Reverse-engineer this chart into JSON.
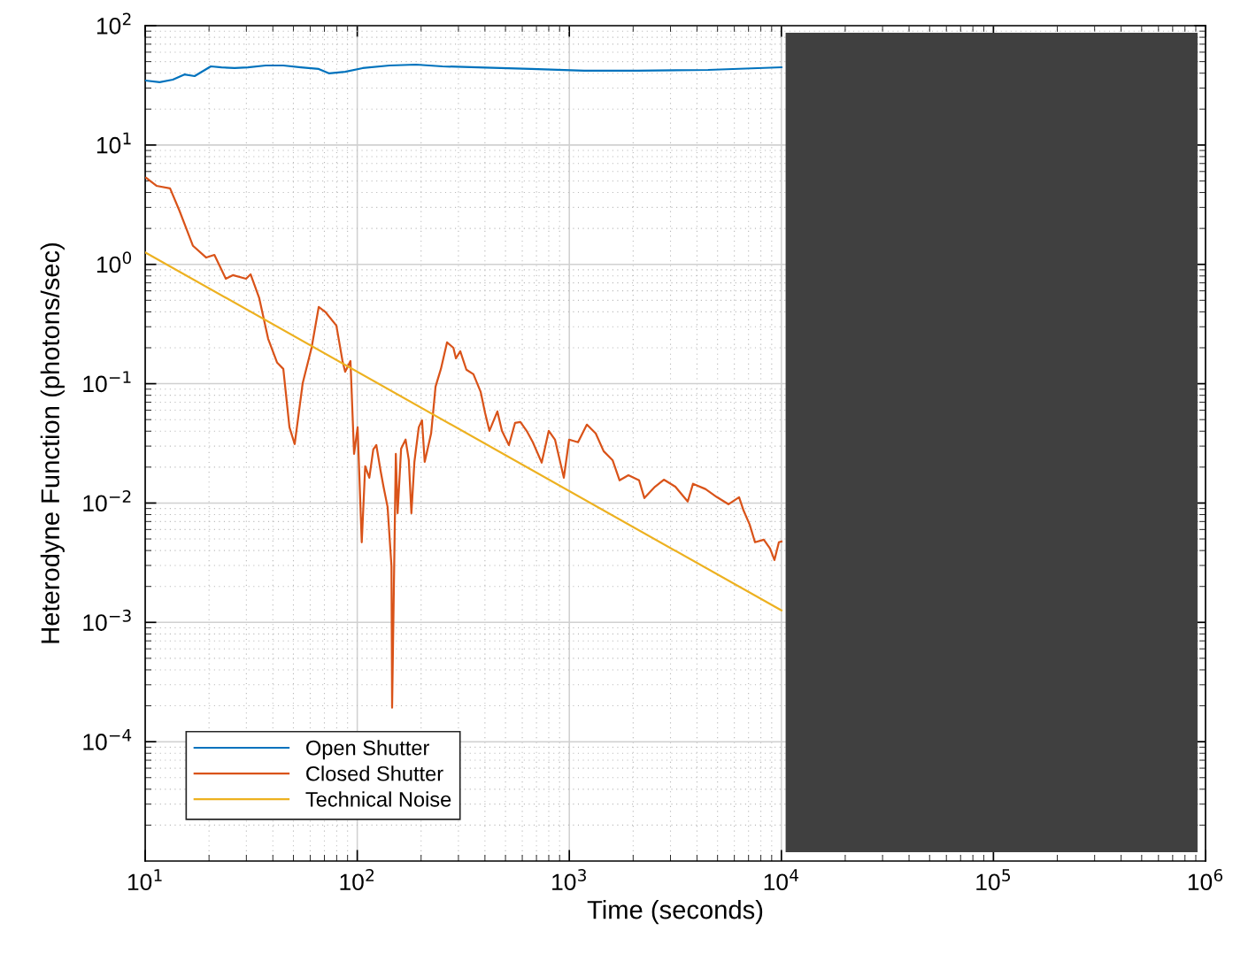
{
  "chart_data": {
    "type": "line",
    "xlabel": "Time (seconds)",
    "ylabel": "Heterodyne Function (photons/sec)",
    "log": "xy",
    "grid": true,
    "legend": "bottom left",
    "xlim": [
      10,
      1000000
    ],
    "ylim": [
      1e-05,
      100
    ],
    "xticks": [
      {
        "value": 10,
        "label": "10$^{1}$"
      },
      {
        "value": 100,
        "label": "10$^{2}$"
      },
      {
        "value": 1000,
        "label": "10$^{3}$"
      },
      {
        "value": 10000,
        "label": "10$^{4}$"
      },
      {
        "value": 100000,
        "label": "10$^{5}$"
      },
      {
        "value": 1000000,
        "label": "10$^{6}$"
      }
    ],
    "yticks": [
      {
        "value": 0.0001,
        "label": "10$^{−4}$"
      },
      {
        "value": 0.001,
        "label": "10$^{−3}$"
      },
      {
        "value": 0.01,
        "label": "10$^{−2}$"
      },
      {
        "value": 0.1,
        "label": "10$^{−1}$"
      },
      {
        "value": 1,
        "label": "10$^{0}$"
      },
      {
        "value": 10,
        "label": "10$^{1}$"
      },
      {
        "value": 100,
        "label": "10$^{2}$"
      }
    ],
    "series": [
      {
        "name": "Open Shutter",
        "color": "#0072bd",
        "x": [
          10,
          11.7,
          13.5,
          15.3,
          17.1,
          20.4,
          22.9,
          26.4,
          30.5,
          37,
          44.8,
          54.3,
          65.8,
          73.8,
          87.7,
          106,
          142,
          189,
          252,
          371,
          660,
          1175,
          2090,
          4510,
          10000
        ],
        "values": [
          34.7,
          33.6,
          35.3,
          39,
          37.8,
          45.6,
          44.8,
          44.1,
          44.8,
          46.4,
          46.4,
          44.8,
          43.4,
          39.8,
          41.1,
          44.1,
          46.4,
          47.2,
          45.6,
          44.8,
          43.4,
          41.9,
          41.9,
          42.6,
          44.8
        ]
      },
      {
        "name": "Closed Shutter",
        "color": "#d95319",
        "x": [
          10.1,
          11.3,
          13.1,
          14.5,
          16.8,
          19.4,
          21.2,
          24.0,
          25.9,
          29.9,
          31.4,
          34.5,
          38.0,
          41.9,
          44.8,
          47.9,
          50.7,
          55.3,
          60.9,
          65.8,
          71.0,
          79.7,
          85.2,
          87.7,
          92.9,
          96.6,
          100.4,
          105,
          109,
          114,
          119,
          123,
          129,
          133,
          139,
          145,
          146,
          152,
          155,
          161,
          169,
          175,
          180,
          186,
          195,
          202,
          208,
          223,
          234,
          248,
          265,
          284,
          292,
          306,
          327,
          353,
          382,
          401,
          420,
          458,
          481,
          519,
          555,
          588,
          629,
          673,
          741,
          800,
          856,
          942,
          998,
          1099,
          1210,
          1332,
          1452,
          1599,
          1726,
          1900,
          2133,
          2259,
          2535,
          2791,
          3162,
          3617,
          3831,
          4385,
          4969,
          5628,
          6318,
          6630,
          7090,
          7509,
          8267,
          8843,
          9278,
          9734,
          10000
        ],
        "values": [
          5.31,
          4.55,
          4.33,
          2.82,
          1.43,
          1.14,
          1.2,
          0.758,
          0.812,
          0.758,
          0.826,
          0.521,
          0.238,
          0.15,
          0.133,
          0.0431,
          0.0312,
          0.101,
          0.2,
          0.439,
          0.396,
          0.307,
          0.155,
          0.126,
          0.155,
          0.0258,
          0.0431,
          0.00469,
          0.0203,
          0.0163,
          0.0281,
          0.0306,
          0.0184,
          0.0137,
          0.00927,
          0.00296,
          0.000193,
          0.0258,
          0.00822,
          0.0286,
          0.034,
          0.0229,
          0.00822,
          0.0221,
          0.0431,
          0.0494,
          0.0221,
          0.0383,
          0.0946,
          0.133,
          0.222,
          0.2,
          0.163,
          0.187,
          0.131,
          0.12,
          0.0853,
          0.0566,
          0.0403,
          0.0586,
          0.0403,
          0.0306,
          0.047,
          0.0478,
          0.0403,
          0.0323,
          0.0218,
          0.0403,
          0.034,
          0.0163,
          0.034,
          0.0323,
          0.0454,
          0.0383,
          0.0272,
          0.0229,
          0.0155,
          0.0171,
          0.0155,
          0.011,
          0.0137,
          0.0157,
          0.0137,
          0.0103,
          0.0145,
          0.0131,
          0.0112,
          0.00977,
          0.0112,
          0.00867,
          0.00659,
          0.00469,
          0.00493,
          0.00416,
          0.00333,
          0.00469,
          0.00476
        ]
      },
      {
        "name": "Technical Noise",
        "color": "#edb120",
        "x": [
          10,
          10000
        ],
        "values": [
          1.26,
          0.00126
        ]
      }
    ]
  }
}
